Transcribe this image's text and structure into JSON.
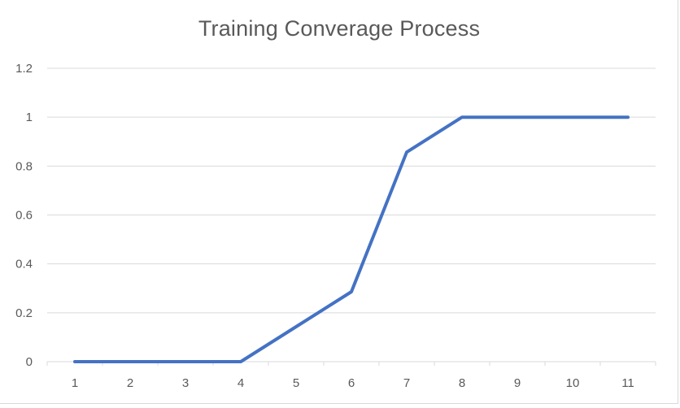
{
  "chart_data": {
    "type": "line",
    "title": "Training Converage Process",
    "xlabel": "",
    "ylabel": "",
    "x": [
      1,
      2,
      3,
      4,
      5,
      6,
      7,
      8,
      9,
      10,
      11
    ],
    "x_tick_labels": [
      "1",
      "2",
      "3",
      "4",
      "5",
      "6",
      "7",
      "8",
      "9",
      "10",
      "11"
    ],
    "y_tick_labels": [
      "0",
      "0.2",
      "0.4",
      "0.6",
      "0.8",
      "1",
      "1.2"
    ],
    "y_ticks": [
      0,
      0.2,
      0.4,
      0.6,
      0.8,
      1,
      1.2
    ],
    "ylim": [
      0,
      1.2
    ],
    "grid": "horizontal",
    "legend": "none",
    "series": [
      {
        "values": [
          0,
          0,
          0,
          0,
          0.143,
          0.286,
          0.857,
          1,
          1,
          1,
          1
        ],
        "color": "#4472c4"
      }
    ],
    "colors": {
      "line": "#4472c4",
      "grid": "#d9d9d9",
      "text": "#595959"
    }
  }
}
